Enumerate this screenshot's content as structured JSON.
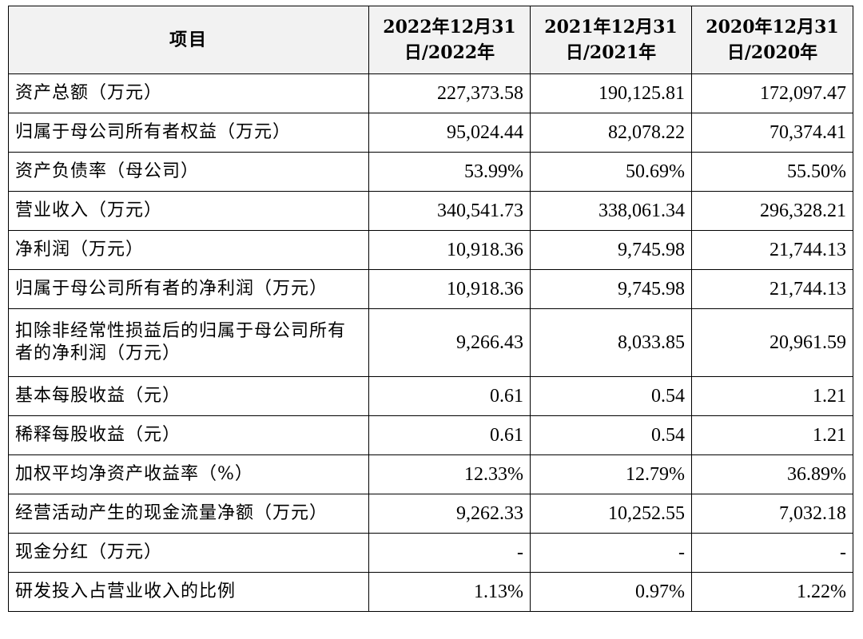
{
  "table": {
    "headers": [
      "项目",
      "2022年12月31日/2022年",
      "2021年12月31日/2021年",
      "2020年12月31日/2020年"
    ],
    "rows": [
      {
        "label": "资产总额（万元）",
        "values": [
          "227,373.58",
          "190,125.81",
          "172,097.47"
        ]
      },
      {
        "label": "归属于母公司所有者权益（万元）",
        "values": [
          "95,024.44",
          "82,078.22",
          "70,374.41"
        ]
      },
      {
        "label": "资产负债率（母公司）",
        "values": [
          "53.99%",
          "50.69%",
          "55.50%"
        ]
      },
      {
        "label": "营业收入（万元）",
        "values": [
          "340,541.73",
          "338,061.34",
          "296,328.21"
        ]
      },
      {
        "label": "净利润（万元）",
        "values": [
          "10,918.36",
          "9,745.98",
          "21,744.13"
        ]
      },
      {
        "label": "归属于母公司所有者的净利润（万元）",
        "values": [
          "10,918.36",
          "9,745.98",
          "21,744.13"
        ]
      },
      {
        "label": "扣除非经常性损益后的归属于母公司所有者的净利润（万元）",
        "values": [
          "9,266.43",
          "8,033.85",
          "20,961.59"
        ]
      },
      {
        "label": "基本每股收益（元）",
        "values": [
          "0.61",
          "0.54",
          "1.21"
        ]
      },
      {
        "label": "稀释每股收益（元）",
        "values": [
          "0.61",
          "0.54",
          "1.21"
        ]
      },
      {
        "label": "加权平均净资产收益率（%）",
        "values": [
          "12.33%",
          "12.79%",
          "36.89%"
        ]
      },
      {
        "label": "经营活动产生的现金流量净额（万元）",
        "values": [
          "9,262.33",
          "10,252.55",
          "7,032.18"
        ]
      },
      {
        "label": "现金分红（万元）",
        "values": [
          "-",
          "-",
          "-"
        ]
      },
      {
        "label": "研发投入占营业收入的比例",
        "values": [
          "1.13%",
          "0.97%",
          "1.22%"
        ]
      }
    ]
  }
}
